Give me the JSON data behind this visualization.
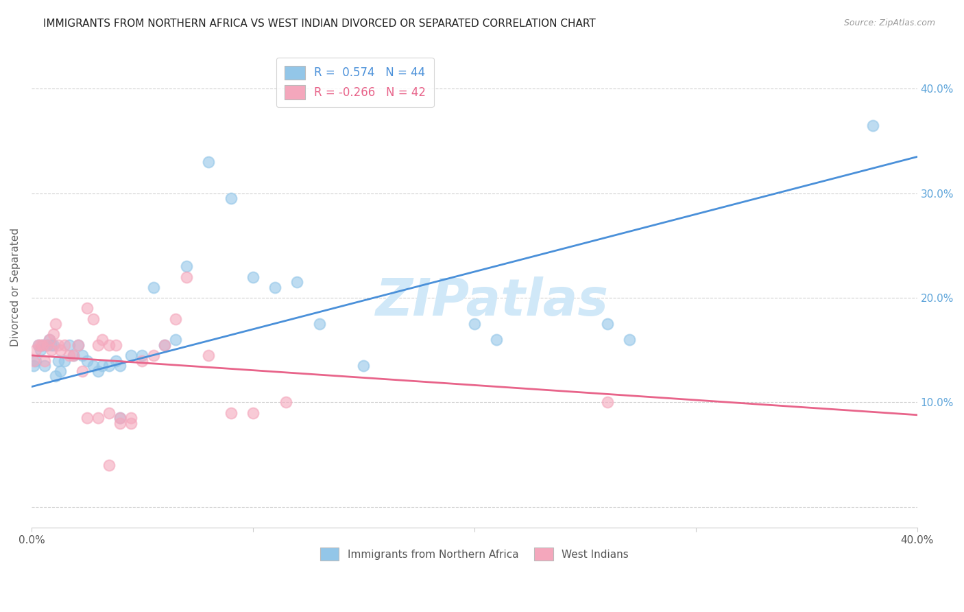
{
  "title": "IMMIGRANTS FROM NORTHERN AFRICA VS WEST INDIAN DIVORCED OR SEPARATED CORRELATION CHART",
  "source": "Source: ZipAtlas.com",
  "ylabel": "Divorced or Separated",
  "xlim": [
    0.0,
    0.4
  ],
  "ylim": [
    -0.02,
    0.44
  ],
  "yticks": [
    0.0,
    0.1,
    0.2,
    0.3,
    0.4
  ],
  "ytick_labels": [
    "",
    "10.0%",
    "20.0%",
    "30.0%",
    "40.0%"
  ],
  "xticks": [
    0.0,
    0.1,
    0.2,
    0.3,
    0.4
  ],
  "xtick_labels": [
    "0.0%",
    "",
    "",
    "",
    "40.0%"
  ],
  "blue_color": "#93c6e8",
  "pink_color": "#f4a7bc",
  "blue_line_color": "#4a90d9",
  "pink_line_color": "#e8648a",
  "right_tick_color": "#5ba3d9",
  "watermark": "ZIPatlas",
  "watermark_color": "#d0e8f8",
  "blue_line_x0": 0.0,
  "blue_line_y0": 0.115,
  "blue_line_x1": 0.4,
  "blue_line_y1": 0.335,
  "pink_line_x0": 0.0,
  "pink_line_y0": 0.145,
  "pink_line_x1": 0.4,
  "pink_line_y1": 0.088,
  "blue_dots_x": [
    0.001,
    0.002,
    0.003,
    0.004,
    0.005,
    0.006,
    0.007,
    0.008,
    0.009,
    0.01,
    0.011,
    0.012,
    0.013,
    0.015,
    0.017,
    0.019,
    0.021,
    0.023,
    0.025,
    0.028,
    0.03,
    0.032,
    0.035,
    0.038,
    0.04,
    0.045,
    0.05,
    0.055,
    0.06,
    0.065,
    0.07,
    0.08,
    0.09,
    0.1,
    0.11,
    0.12,
    0.13,
    0.15,
    0.2,
    0.21,
    0.26,
    0.27,
    0.38,
    0.04
  ],
  "blue_dots_y": [
    0.135,
    0.14,
    0.155,
    0.15,
    0.155,
    0.135,
    0.155,
    0.16,
    0.155,
    0.155,
    0.125,
    0.14,
    0.13,
    0.14,
    0.155,
    0.145,
    0.155,
    0.145,
    0.14,
    0.135,
    0.13,
    0.135,
    0.135,
    0.14,
    0.135,
    0.145,
    0.145,
    0.21,
    0.155,
    0.16,
    0.23,
    0.33,
    0.295,
    0.22,
    0.21,
    0.215,
    0.175,
    0.135,
    0.175,
    0.16,
    0.175,
    0.16,
    0.365,
    0.085
  ],
  "pink_dots_x": [
    0.001,
    0.002,
    0.003,
    0.004,
    0.005,
    0.006,
    0.007,
    0.008,
    0.009,
    0.01,
    0.011,
    0.012,
    0.013,
    0.015,
    0.017,
    0.019,
    0.021,
    0.023,
    0.025,
    0.028,
    0.03,
    0.032,
    0.035,
    0.038,
    0.04,
    0.045,
    0.05,
    0.055,
    0.06,
    0.065,
    0.07,
    0.08,
    0.09,
    0.1,
    0.115,
    0.025,
    0.03,
    0.035,
    0.04,
    0.045,
    0.26,
    0.035
  ],
  "pink_dots_y": [
    0.14,
    0.15,
    0.155,
    0.155,
    0.155,
    0.14,
    0.155,
    0.16,
    0.15,
    0.165,
    0.175,
    0.155,
    0.15,
    0.155,
    0.145,
    0.145,
    0.155,
    0.13,
    0.19,
    0.18,
    0.155,
    0.16,
    0.155,
    0.155,
    0.085,
    0.085,
    0.14,
    0.145,
    0.155,
    0.18,
    0.22,
    0.145,
    0.09,
    0.09,
    0.1,
    0.085,
    0.085,
    0.09,
    0.08,
    0.08,
    0.1,
    0.04
  ]
}
